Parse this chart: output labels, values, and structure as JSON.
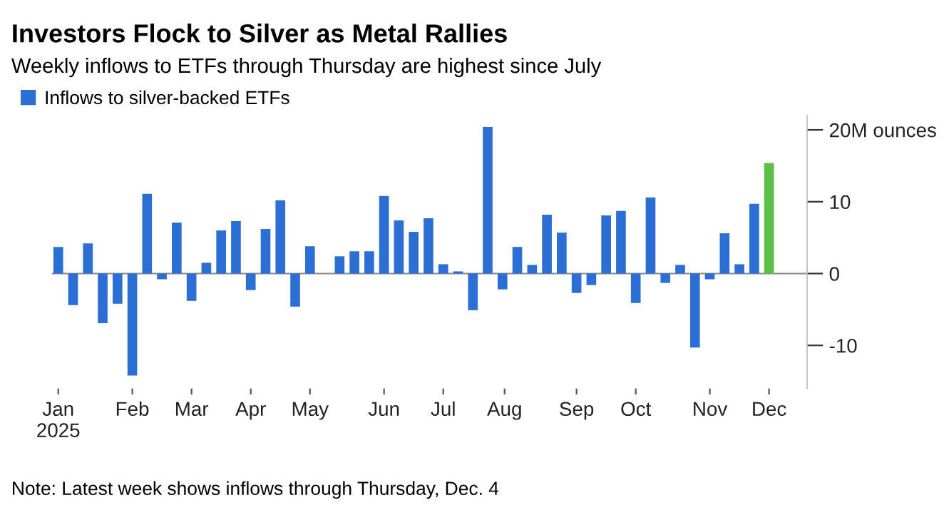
{
  "chart_data": {
    "type": "bar",
    "title": "Investors Flock to Silver as Metal Rallies",
    "subtitle": "Weekly inflows to ETFs through Thursday are highest since July",
    "x": [
      "2025-01-02",
      "2025-01-09",
      "2025-01-16",
      "2025-01-23",
      "2025-01-30",
      "2025-02-06",
      "2025-02-13",
      "2025-02-20",
      "2025-02-27",
      "2025-03-06",
      "2025-03-13",
      "2025-03-20",
      "2025-03-27",
      "2025-04-03",
      "2025-04-10",
      "2025-04-17",
      "2025-04-24",
      "2025-05-01",
      "2025-05-08",
      "2025-05-15",
      "2025-05-22",
      "2025-05-29",
      "2025-06-05",
      "2025-06-12",
      "2025-06-19",
      "2025-06-26",
      "2025-07-03",
      "2025-07-10",
      "2025-07-17",
      "2025-07-24",
      "2025-07-31",
      "2025-08-07",
      "2025-08-14",
      "2025-08-21",
      "2025-08-28",
      "2025-09-04",
      "2025-09-11",
      "2025-09-18",
      "2025-09-25",
      "2025-10-02",
      "2025-10-09",
      "2025-10-16",
      "2025-10-23",
      "2025-10-30",
      "2025-11-06",
      "2025-11-13",
      "2025-11-20",
      "2025-11-27",
      "2025-12-04"
    ],
    "series": [
      {
        "name": "Inflows to silver-backed ETFs",
        "color": "#2b6fd4",
        "values": [
          3.7,
          -4.4,
          4.2,
          -6.9,
          -4.2,
          -14.2,
          11.1,
          -0.8,
          7.1,
          -3.8,
          1.5,
          6.0,
          7.3,
          -2.3,
          6.2,
          10.2,
          -4.6,
          3.8,
          0,
          2.4,
          3.1,
          3.1,
          10.8,
          7.4,
          5.8,
          7.7,
          1.3,
          0.3,
          -5.1,
          20.4,
          -2.2,
          3.7,
          1.2,
          8.2,
          5.7,
          -2.7,
          -1.6,
          8.1,
          8.7,
          -4.1,
          10.6,
          -1.3,
          1.2,
          -10.3,
          -0.8,
          5.6,
          1.3,
          9.7,
          15.4
        ],
        "colors": [
          "#2b6fd4",
          "#2b6fd4",
          "#2b6fd4",
          "#2b6fd4",
          "#2b6fd4",
          "#2b6fd4",
          "#2b6fd4",
          "#2b6fd4",
          "#2b6fd4",
          "#2b6fd4",
          "#2b6fd4",
          "#2b6fd4",
          "#2b6fd4",
          "#2b6fd4",
          "#2b6fd4",
          "#2b6fd4",
          "#2b6fd4",
          "#2b6fd4",
          "#2b6fd4",
          "#2b6fd4",
          "#2b6fd4",
          "#2b6fd4",
          "#2b6fd4",
          "#2b6fd4",
          "#2b6fd4",
          "#2b6fd4",
          "#2b6fd4",
          "#2b6fd4",
          "#2b6fd4",
          "#2b6fd4",
          "#2b6fd4",
          "#2b6fd4",
          "#2b6fd4",
          "#2b6fd4",
          "#2b6fd4",
          "#2b6fd4",
          "#2b6fd4",
          "#2b6fd4",
          "#2b6fd4",
          "#2b6fd4",
          "#2b6fd4",
          "#2b6fd4",
          "#2b6fd4",
          "#2b6fd4",
          "#2b6fd4",
          "#2b6fd4",
          "#2b6fd4",
          "#2b6fd4",
          "#5cbf47"
        ]
      }
    ],
    "xlim": [
      "2024-12-30",
      "2025-12-22"
    ],
    "xticks": [
      {
        "value": "2025-01-02",
        "label": "Jan\n2025"
      },
      {
        "value": "2025-02-06",
        "label": "Feb"
      },
      {
        "value": "2025-03-06",
        "label": "Mar"
      },
      {
        "value": "2025-04-03",
        "label": "Apr"
      },
      {
        "value": "2025-05-01",
        "label": "May"
      },
      {
        "value": "2025-06-05",
        "label": "Jun"
      },
      {
        "value": "2025-07-03",
        "label": "Jul"
      },
      {
        "value": "2025-08-01",
        "label": "Aug"
      },
      {
        "value": "2025-09-04",
        "label": "Sep"
      },
      {
        "value": "2025-10-02",
        "label": "Oct"
      },
      {
        "value": "2025-11-06",
        "label": "Nov"
      },
      {
        "value": "2025-12-04",
        "label": "Dec"
      }
    ],
    "ylim": [
      -16,
      22
    ],
    "yticks": [
      {
        "value": 20,
        "label": "20M ounces"
      },
      10,
      0,
      {
        "value": -10,
        "label": "-10"
      }
    ],
    "ref_lines": [
      {
        "axis": "y",
        "value": 0,
        "color": "#888888"
      }
    ],
    "legend": "top left",
    "grid": false,
    "annotations": [
      "Note: Latest week shows inflows through Thursday, Dec. 4"
    ]
  }
}
